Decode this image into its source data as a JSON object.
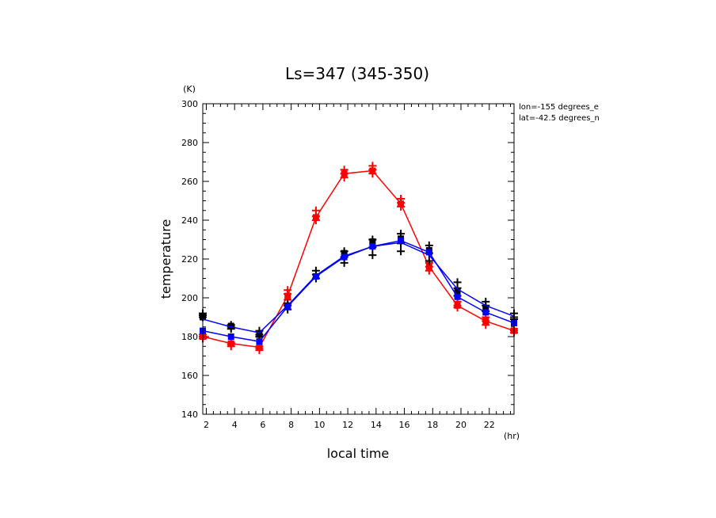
{
  "chart_data": {
    "type": "line",
    "title": "Ls=347 (345-350)",
    "xlabel": "local time",
    "ylabel": "temperature",
    "x_unit": "(hr)",
    "y_unit": "(K)",
    "annotations": [
      "lon=-155 degrees_e",
      "lat=-42.5 degrees_n"
    ],
    "xlim": [
      1.75,
      23.75
    ],
    "ylim": [
      140,
      300
    ],
    "x_ticks": [
      2,
      4,
      6,
      8,
      10,
      12,
      14,
      16,
      18,
      20,
      22
    ],
    "y_ticks": [
      140,
      160,
      180,
      200,
      220,
      240,
      260,
      280,
      300
    ],
    "grid": false,
    "x": [
      1.75,
      3.75,
      5.75,
      7.75,
      9.75,
      11.75,
      13.75,
      15.75,
      17.75,
      19.75,
      21.75,
      23.75
    ],
    "series": [
      {
        "color": "#ff0000",
        "marker": "square",
        "values": [
          180,
          176.5,
          174.5,
          201,
          241.5,
          264,
          265.5,
          248.5,
          216,
          196,
          188,
          183
        ],
        "samples": [
          [
            179,
            180,
            181
          ],
          [
            175,
            176,
            177
          ],
          [
            173,
            174,
            175
          ],
          [
            199,
            202,
            204
          ],
          [
            240,
            242,
            245
          ],
          [
            262,
            264,
            266
          ],
          [
            264,
            266,
            268
          ],
          [
            247,
            249,
            251
          ],
          [
            214,
            216,
            218
          ],
          [
            195,
            196,
            198
          ],
          [
            186,
            188,
            190
          ],
          [
            182,
            183,
            184
          ]
        ]
      },
      {
        "color": "#0000ff",
        "marker": "square",
        "values": [
          183,
          180,
          177.5,
          195.5,
          211,
          221,
          226.5,
          229.5,
          223.5,
          200.5,
          192.5,
          187
        ],
        "samples": []
      },
      {
        "color": "#0000ff",
        "marker": "none",
        "values": [
          189,
          185,
          182,
          196,
          211.5,
          221.5,
          226.5,
          228.5,
          222,
          204.5,
          196,
          190.5
        ],
        "samples": []
      },
      {
        "color": "#000000",
        "marker": "square",
        "values": [
          190,
          185.5,
          181,
          196,
          211,
          223,
          229,
          230.5,
          224.5,
          203,
          194.5,
          187
        ],
        "samples": [
          [
            190,
            191,
            192
          ],
          [
            184,
            185,
            186
          ],
          [
            180,
            181,
            183
          ],
          [
            194,
            196,
            197
          ],
          [
            210,
            212,
            214
          ],
          [
            218,
            221,
            224
          ],
          [
            222,
            226,
            230
          ],
          [
            224,
            228,
            233
          ],
          [
            219,
            223,
            227
          ],
          [
            201,
            205,
            208
          ],
          [
            193,
            196,
            198
          ],
          [
            189,
            190,
            192
          ]
        ]
      }
    ]
  }
}
